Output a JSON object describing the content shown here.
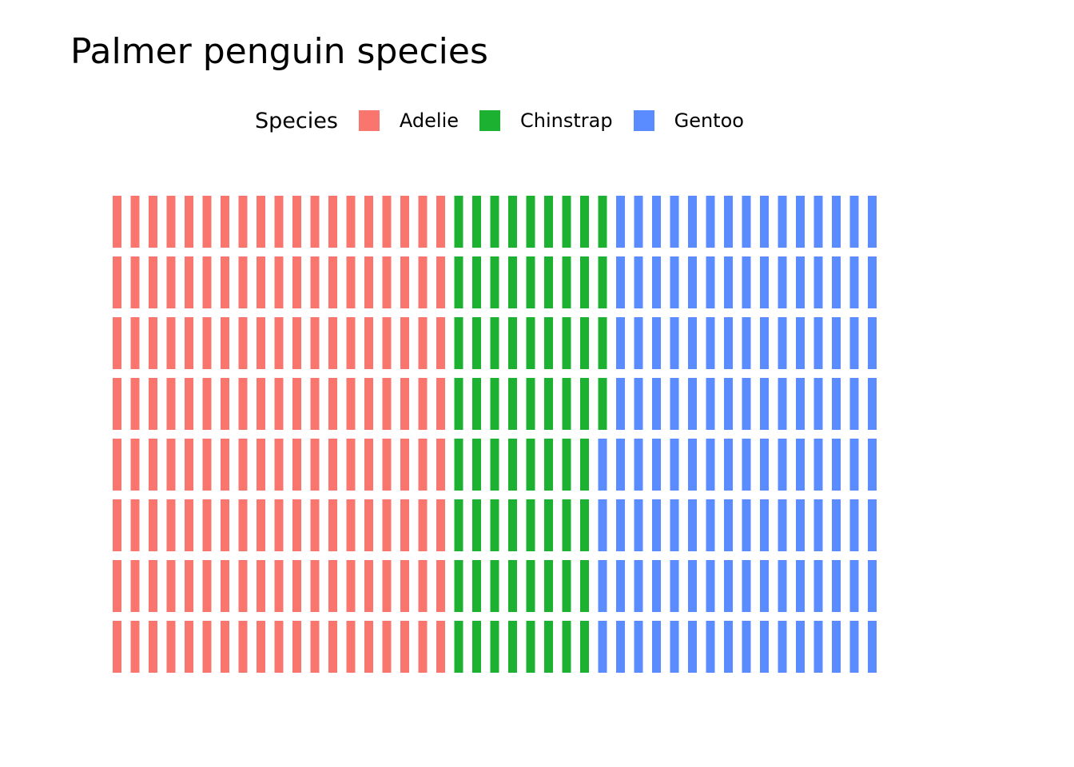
{
  "chart_data": {
    "type": "waffle",
    "title": "Palmer penguin species",
    "legend": {
      "title": "Species",
      "position": "top"
    },
    "categories": [
      "Adelie",
      "Chinstrap",
      "Gentoo"
    ],
    "values": [
      152,
      68,
      124
    ],
    "colors": [
      "#F8766D",
      "#1CB130",
      "#5B8CFF"
    ],
    "grid": {
      "rows": 8,
      "columns": 43
    }
  }
}
